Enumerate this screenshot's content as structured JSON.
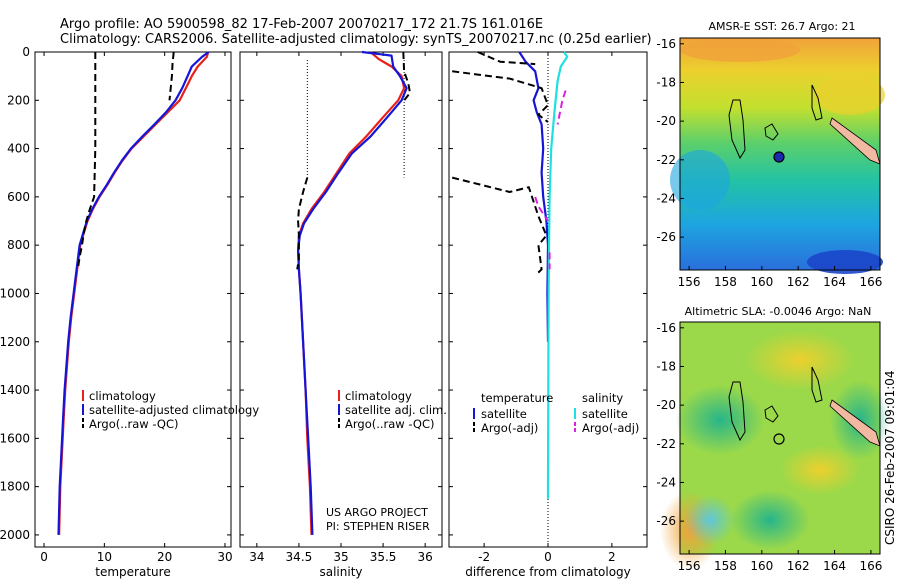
{
  "header": {
    "line1": "Argo profile: AO 5900598_82 17-Feb-2007 20070217_172 21.7S 161.016E",
    "line2": "Climatology: CARS2006. Satellite-adjusted climatology: synTS_20070217.nc (0.25d earlier)"
  },
  "side_stamp": "CSIRO 26-Feb-2007 09:01:04",
  "colors": {
    "climatology": "#e8211b",
    "satellite": "#1515d8",
    "argo": "#000000",
    "sal_satellite": "#1fe0e0",
    "sal_argo": "#e020e0"
  },
  "chart_data": [
    {
      "type": "line",
      "id": "temperature",
      "xlabel": "temperature",
      "ylim": [
        2050,
        0
      ],
      "xlim": [
        -1.5,
        31
      ],
      "xticks": [
        0,
        10,
        20,
        30
      ],
      "yticks": [
        0,
        200,
        400,
        600,
        800,
        1000,
        1200,
        1400,
        1600,
        1800,
        2000
      ],
      "legend": [
        "climatology",
        "satellite-adjusted climatology",
        "Argo(..raw -QC)"
      ],
      "series": [
        {
          "name": "climatology",
          "color": "red",
          "points": [
            [
              27.2,
              0
            ],
            [
              27.0,
              20
            ],
            [
              25.5,
              60
            ],
            [
              24.5,
              100
            ],
            [
              23.5,
              150
            ],
            [
              22.5,
              200
            ],
            [
              20.5,
              250
            ],
            [
              18.5,
              300
            ],
            [
              16.5,
              350
            ],
            [
              14.5,
              400
            ],
            [
              13.0,
              450
            ],
            [
              11.7,
              500
            ],
            [
              10.5,
              550
            ],
            [
              9.2,
              600
            ],
            [
              8.1,
              650
            ],
            [
              7.2,
              700
            ],
            [
              6.6,
              750
            ],
            [
              6.0,
              800
            ],
            [
              5.5,
              900
            ],
            [
              5.0,
              1000
            ],
            [
              4.5,
              1100
            ],
            [
              4.1,
              1200
            ],
            [
              3.8,
              1300
            ],
            [
              3.5,
              1400
            ],
            [
              3.3,
              1500
            ],
            [
              3.1,
              1600
            ],
            [
              2.9,
              1700
            ],
            [
              2.7,
              1800
            ],
            [
              2.6,
              1900
            ],
            [
              2.5,
              2000
            ]
          ]
        },
        {
          "name": "satellite-adjusted climatology",
          "color": "blue",
          "points": [
            [
              27.3,
              0
            ],
            [
              26.2,
              20
            ],
            [
              24.5,
              60
            ],
            [
              23.8,
              100
            ],
            [
              22.9,
              150
            ],
            [
              21.8,
              200
            ],
            [
              20.2,
              250
            ],
            [
              18.3,
              300
            ],
            [
              16.3,
              350
            ],
            [
              14.4,
              400
            ],
            [
              12.9,
              450
            ],
            [
              11.6,
              500
            ],
            [
              10.4,
              550
            ],
            [
              9.1,
              600
            ],
            [
              8.0,
              650
            ],
            [
              7.1,
              700
            ],
            [
              6.5,
              750
            ],
            [
              5.9,
              800
            ],
            [
              5.4,
              900
            ],
            [
              4.9,
              1000
            ],
            [
              4.4,
              1100
            ],
            [
              4.0,
              1200
            ],
            [
              3.7,
              1300
            ],
            [
              3.4,
              1400
            ],
            [
              3.2,
              1500
            ],
            [
              3.0,
              1600
            ],
            [
              2.8,
              1700
            ],
            [
              2.6,
              1800
            ],
            [
              2.5,
              1900
            ],
            [
              2.4,
              2000
            ]
          ]
        },
        {
          "name": "Argo(..raw -QC)",
          "color": "black",
          "style": "dashed",
          "points": [
            [
              21.5,
              0
            ],
            [
              21.3,
              50
            ],
            [
              21.2,
              100
            ],
            [
              21.0,
              150
            ],
            [
              20.8,
              200
            ]
          ]
        },
        {
          "name": "Argo(..raw -QC)",
          "color": "black",
          "style": "dashed",
          "points": [
            [
              8.5,
              0
            ],
            [
              8.5,
              100
            ],
            [
              8.5,
              200
            ],
            [
              8.5,
              300
            ],
            [
              8.5,
              400
            ],
            [
              8.4,
              500
            ],
            [
              8.3,
              600
            ],
            [
              7.6,
              650
            ],
            [
              7.0,
              700
            ],
            [
              6.6,
              750
            ],
            [
              6.3,
              800
            ],
            [
              5.9,
              850
            ],
            [
              5.6,
              900
            ]
          ]
        }
      ]
    },
    {
      "type": "line",
      "id": "salinity",
      "xlabel": "salinity",
      "ylim": [
        2050,
        0
      ],
      "xlim": [
        33.8,
        36.2
      ],
      "xticks": [
        34,
        34.5,
        35,
        35.5,
        36
      ],
      "legend": [
        "climatology",
        "satellite adj. clim.",
        "Argo(..raw -QC)"
      ],
      "annotation": [
        "US ARGO PROJECT",
        "PI: STEPHEN RISER"
      ],
      "series": [
        {
          "name": "climatology",
          "color": "red",
          "points": [
            [
              35.35,
              0
            ],
            [
              35.45,
              30
            ],
            [
              35.6,
              60
            ],
            [
              35.72,
              100
            ],
            [
              35.75,
              150
            ],
            [
              35.68,
              200
            ],
            [
              35.5,
              270
            ],
            [
              35.3,
              350
            ],
            [
              35.1,
              420
            ],
            [
              34.95,
              500
            ],
            [
              34.8,
              580
            ],
            [
              34.65,
              650
            ],
            [
              34.55,
              710
            ],
            [
              34.5,
              760
            ],
            [
              34.49,
              820
            ],
            [
              34.5,
              900
            ],
            [
              34.52,
              1000
            ],
            [
              34.55,
              1200
            ],
            [
              34.58,
              1400
            ],
            [
              34.6,
              1600
            ],
            [
              34.63,
              1800
            ],
            [
              34.65,
              2000
            ]
          ]
        },
        {
          "name": "satellite adj. clim.",
          "color": "blue",
          "points": [
            [
              35.25,
              0
            ],
            [
              35.6,
              15
            ],
            [
              35.62,
              60
            ],
            [
              35.7,
              100
            ],
            [
              35.78,
              150
            ],
            [
              35.72,
              200
            ],
            [
              35.55,
              270
            ],
            [
              35.35,
              350
            ],
            [
              35.13,
              420
            ],
            [
              34.97,
              500
            ],
            [
              34.82,
              580
            ],
            [
              34.67,
              650
            ],
            [
              34.56,
              710
            ],
            [
              34.51,
              760
            ],
            [
              34.49,
              820
            ],
            [
              34.5,
              900
            ],
            [
              34.52,
              1000
            ],
            [
              34.55,
              1200
            ],
            [
              34.58,
              1400
            ],
            [
              34.61,
              1600
            ],
            [
              34.64,
              1800
            ],
            [
              34.66,
              2000
            ]
          ]
        },
        {
          "name": "Argo(..raw -QC)",
          "color": "black",
          "style": "dashed",
          "points": [
            [
              35.74,
              0
            ],
            [
              35.75,
              80
            ],
            [
              35.8,
              130
            ],
            [
              35.82,
              170
            ],
            [
              35.75,
              200
            ]
          ]
        },
        {
          "name": "Argo(..raw -QC)",
          "color": "black",
          "style": "dashed",
          "points": [
            [
              34.6,
              520
            ],
            [
              34.55,
              580
            ],
            [
              34.5,
              650
            ],
            [
              34.49,
              700
            ],
            [
              34.5,
              760
            ],
            [
              34.5,
              860
            ],
            [
              34.48,
              900
            ]
          ]
        }
      ]
    },
    {
      "type": "line",
      "id": "difference",
      "xlabel": "difference from climatology",
      "ylim": [
        2050,
        0
      ],
      "xlim": [
        -3.1,
        3.1
      ],
      "xticks": [
        -2,
        0,
        2
      ],
      "legend_left_title": "temperature",
      "legend_right_title": "salinity",
      "legend": [
        "satellite",
        "Argo(-adj)",
        "satellite",
        "Argo(-adj)"
      ],
      "series": [
        {
          "name": "temperature satellite",
          "color": "blue",
          "points": [
            [
              -0.9,
              0
            ],
            [
              -0.7,
              40
            ],
            [
              -0.4,
              80
            ],
            [
              -0.3,
              150
            ],
            [
              -0.45,
              200
            ],
            [
              -0.35,
              250
            ],
            [
              -0.2,
              300
            ],
            [
              -0.15,
              400
            ],
            [
              -0.2,
              500
            ],
            [
              -0.15,
              600
            ],
            [
              -0.05,
              700
            ],
            [
              0,
              800
            ],
            [
              -0.02,
              1000
            ],
            [
              0,
              1200
            ]
          ]
        },
        {
          "name": "temperature Argo(-adj)",
          "color": "black",
          "style": "dashed",
          "points": [
            [
              -2.2,
              0
            ],
            [
              -1.5,
              40
            ],
            [
              -0.4,
              50
            ]
          ]
        },
        {
          "name": "temperature Argo(-adj)",
          "color": "black",
          "style": "dashed",
          "points": [
            [
              -3.0,
              80
            ],
            [
              -1.2,
              110
            ],
            [
              -0.2,
              150
            ],
            [
              0,
              220
            ],
            [
              -0.3,
              260
            ],
            [
              0,
              290
            ]
          ]
        },
        {
          "name": "temperature Argo(-adj)",
          "color": "black",
          "style": "dashed",
          "points": [
            [
              -3.0,
              520
            ],
            [
              -1.2,
              580
            ],
            [
              -0.6,
              560
            ],
            [
              -0.3,
              680
            ],
            [
              -0.05,
              760
            ],
            [
              -0.3,
              800
            ],
            [
              -0.2,
              900
            ],
            [
              -0.35,
              920
            ]
          ]
        },
        {
          "name": "salinity satellite",
          "color": "cyan",
          "points": [
            [
              0.5,
              0
            ],
            [
              0.6,
              20
            ],
            [
              0.4,
              60
            ],
            [
              0.3,
              120
            ],
            [
              0.2,
              250
            ],
            [
              0.1,
              400
            ],
            [
              0.05,
              600
            ],
            [
              0.03,
              800
            ],
            [
              0.02,
              1000
            ],
            [
              0.01,
              1400
            ],
            [
              0,
              1800
            ],
            [
              0,
              1850
            ]
          ]
        },
        {
          "name": "salinity Argo(-adj)",
          "color": "magenta",
          "style": "dashed",
          "points": [
            [
              0.55,
              160
            ],
            [
              0.45,
              200
            ],
            [
              0.3,
              300
            ]
          ]
        },
        {
          "name": "salinity Argo(-adj)",
          "color": "magenta",
          "style": "dashed",
          "points": [
            [
              -0.4,
              600
            ],
            [
              -0.3,
              640
            ],
            [
              0,
              700
            ]
          ]
        },
        {
          "name": "salinity Argo(-adj)",
          "color": "magenta",
          "style": "dashed",
          "points": [
            [
              0.05,
              830
            ],
            [
              0.05,
              900
            ]
          ]
        }
      ]
    },
    {
      "type": "heatmap",
      "id": "sst",
      "title": "AMSR-E SST: 26.7  Argo: 21",
      "xticks": [
        156,
        158,
        160,
        162,
        164,
        166
      ],
      "yticks": [
        -16,
        -18,
        -20,
        -22,
        -24,
        -26
      ]
    },
    {
      "type": "heatmap",
      "id": "sla",
      "title": "Altimetric SLA: -0.0046  Argo: NaN",
      "xticks": [
        156,
        158,
        160,
        162,
        164,
        166
      ],
      "yticks": [
        -16,
        -18,
        -20,
        -22,
        -24,
        -26
      ]
    }
  ]
}
